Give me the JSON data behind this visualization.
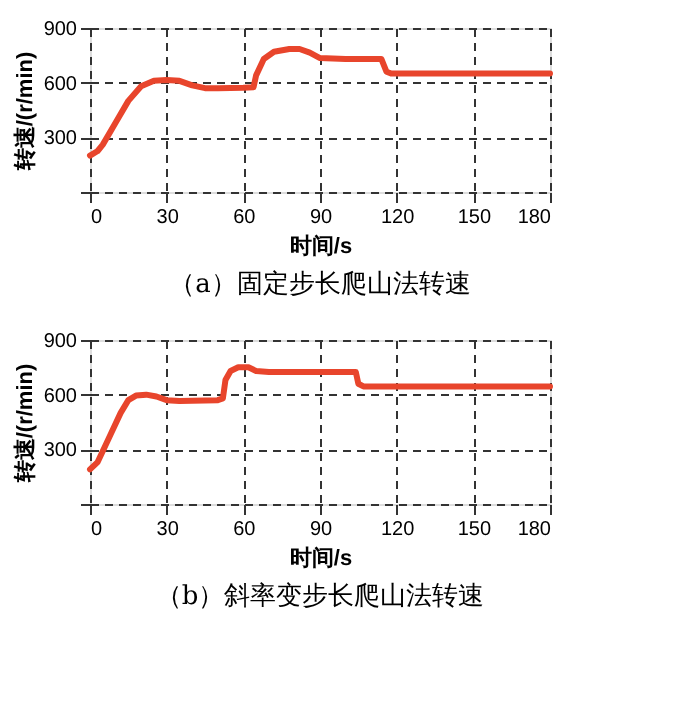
{
  "chart_data": [
    {
      "type": "line",
      "title": "（a）固定步长爬山法转速",
      "xlabel": "时间/s",
      "ylabel": "转速/(r/min)",
      "series": [
        {
          "color": "#e8452c",
          "x": [
            0,
            3,
            5,
            10,
            15,
            20,
            25,
            30,
            35,
            40,
            45,
            50,
            60,
            64,
            65,
            68,
            72,
            78,
            82,
            86,
            90,
            100,
            114,
            116,
            118,
            130,
            180
          ],
          "values": [
            200,
            225,
            260,
            380,
            500,
            580,
            610,
            615,
            610,
            585,
            570,
            570,
            572,
            575,
            640,
            730,
            770,
            785,
            785,
            765,
            735,
            730,
            730,
            660,
            650,
            650,
            650
          ]
        }
      ],
      "xlim": [
        0,
        180
      ],
      "xticks": [
        0,
        30,
        60,
        90,
        120,
        150,
        180
      ],
      "ylim": [
        0,
        900
      ],
      "yticks": [
        {
          "value": 0,
          "label": null
        },
        300,
        600,
        900
      ],
      "grid": true,
      "line_style": "solid"
    },
    {
      "type": "line",
      "title": "（b）斜率变步长爬山法转速",
      "xlabel": "时间/s",
      "ylabel": "转速/(r/min)",
      "series": [
        {
          "color": "#e8452c",
          "x": [
            0,
            3,
            8,
            12,
            15,
            18,
            22,
            26,
            30,
            35,
            50,
            52,
            53,
            55,
            58,
            62,
            65,
            70,
            100,
            104,
            105,
            107,
            180
          ],
          "values": [
            190,
            230,
            380,
            500,
            570,
            595,
            600,
            590,
            570,
            565,
            570,
            580,
            680,
            730,
            750,
            750,
            730,
            725,
            725,
            725,
            660,
            645,
            645
          ]
        }
      ],
      "xlim": [
        0,
        180
      ],
      "xticks": [
        0,
        30,
        60,
        90,
        120,
        150,
        180
      ],
      "ylim": [
        0,
        900
      ],
      "yticks": [
        {
          "value": 0,
          "label": null
        },
        300,
        600,
        900
      ],
      "grid": true,
      "line_style": "solid"
    }
  ]
}
